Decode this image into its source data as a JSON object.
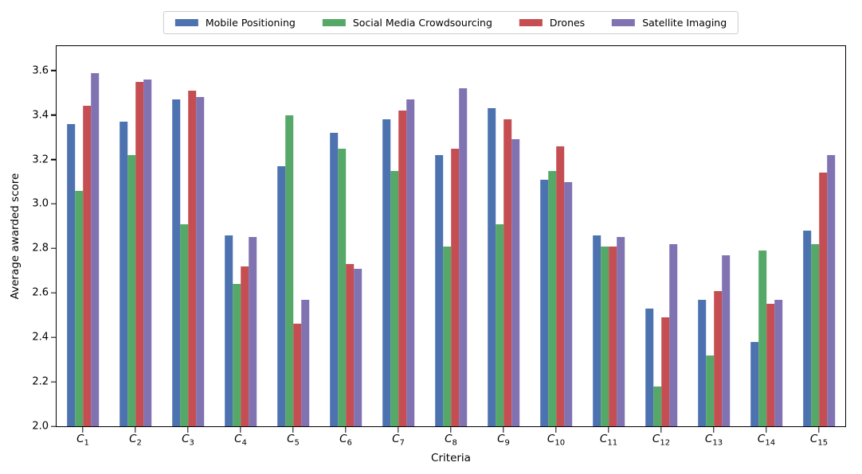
{
  "chart_data": {
    "type": "bar",
    "title": "",
    "xlabel": "Criteria",
    "ylabel": "Average awarded score",
    "categories": [
      "C_1",
      "C_2",
      "C_3",
      "C_4",
      "C_5",
      "C_6",
      "C_7",
      "C_8",
      "C_9",
      "C_10",
      "C_11",
      "C_12",
      "C_13",
      "C_14",
      "C_15"
    ],
    "series": [
      {
        "name": "Mobile Positioning",
        "color": "#4C72B0",
        "values": [
          3.36,
          3.37,
          3.47,
          2.86,
          3.17,
          3.32,
          3.38,
          3.22,
          3.43,
          3.11,
          2.86,
          2.53,
          2.57,
          2.38,
          2.88
        ]
      },
      {
        "name": "Social Media Crowdsourcing",
        "color": "#55A868",
        "values": [
          3.06,
          3.22,
          2.91,
          2.64,
          3.4,
          3.25,
          3.15,
          2.81,
          2.91,
          3.15,
          2.81,
          2.18,
          2.32,
          2.79,
          2.82
        ]
      },
      {
        "name": "Drones",
        "color": "#C44E52",
        "values": [
          3.44,
          3.55,
          3.51,
          2.72,
          2.46,
          2.73,
          3.42,
          3.25,
          3.38,
          3.26,
          2.81,
          2.49,
          2.61,
          2.55,
          3.14
        ]
      },
      {
        "name": "Satellite Imaging",
        "color": "#8172B2",
        "values": [
          3.59,
          3.56,
          3.48,
          2.85,
          2.57,
          2.71,
          3.47,
          3.52,
          3.29,
          3.1,
          2.85,
          2.82,
          2.77,
          2.57,
          3.22
        ]
      }
    ],
    "ylim": [
      2.0,
      3.71
    ],
    "yticks": [
      2.0,
      2.2,
      2.4,
      2.6,
      2.8,
      3.0,
      3.2,
      3.4,
      3.6
    ],
    "grid": false,
    "legend_position": "top-center",
    "frame_color": "#000000",
    "legend_edge_color": "#cccccc"
  }
}
